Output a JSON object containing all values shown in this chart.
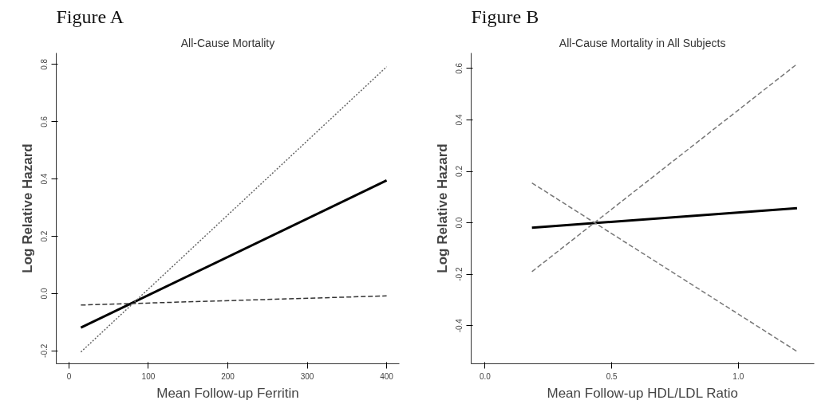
{
  "chart_data": [
    {
      "type": "line",
      "title": "Figure A",
      "subtitle": "All-Cause Mortality",
      "xlabel": "Mean Follow-up Ferritin",
      "ylabel": "Log Relative Hazard",
      "xlim": [
        -16,
        416
      ],
      "ylim": [
        -0.245,
        0.84
      ],
      "xticks": [
        0,
        100,
        200,
        300,
        400
      ],
      "yticks": [
        -0.2,
        {
          "value": 0,
          "label": "0.0"
        },
        0.2,
        0.4,
        0.6,
        0.8
      ],
      "series": [
        {
          "color": "#000000",
          "line_style": "solid",
          "x": [
            15,
            400
          ],
          "values": [
            -0.119,
            0.395
          ]
        },
        {
          "color": "#666666",
          "line_style": "dotted",
          "x": [
            15,
            400
          ],
          "values": [
            -0.204,
            0.792
          ]
        },
        {
          "color": "#333333",
          "line_style": "dashed",
          "x": [
            15,
            400
          ],
          "values": [
            -0.04,
            -0.008
          ]
        }
      ]
    },
    {
      "type": "line",
      "title": "Figure B",
      "subtitle": "All-Cause Mortality in All Subjects",
      "xlabel": "Mean Follow-up HDL/LDL Ratio",
      "ylabel": "Log Relative Hazard",
      "xlim": [
        -0.055,
        1.3
      ],
      "ylim": [
        -0.548,
        0.66
      ],
      "xticks": [
        {
          "value": 0,
          "label": "0.0"
        },
        0.5,
        {
          "value": 1,
          "label": "1.0"
        }
      ],
      "yticks": [
        -0.4,
        -0.2,
        {
          "value": 0,
          "label": "0.0"
        },
        0.2,
        0.4,
        0.6
      ],
      "series": [
        {
          "color": "#000000",
          "line_style": "solid",
          "x": [
            0.185,
            1.232
          ],
          "values": [
            -0.019,
            0.057
          ]
        },
        {
          "color": "#777777",
          "line_style": "dashed",
          "x": [
            0.185,
            1.232
          ],
          "values": [
            -0.19,
            0.617
          ]
        },
        {
          "color": "#777777",
          "line_style": "dashed",
          "x": [
            0.185,
            1.232
          ],
          "values": [
            0.155,
            -0.5
          ]
        }
      ]
    }
  ]
}
